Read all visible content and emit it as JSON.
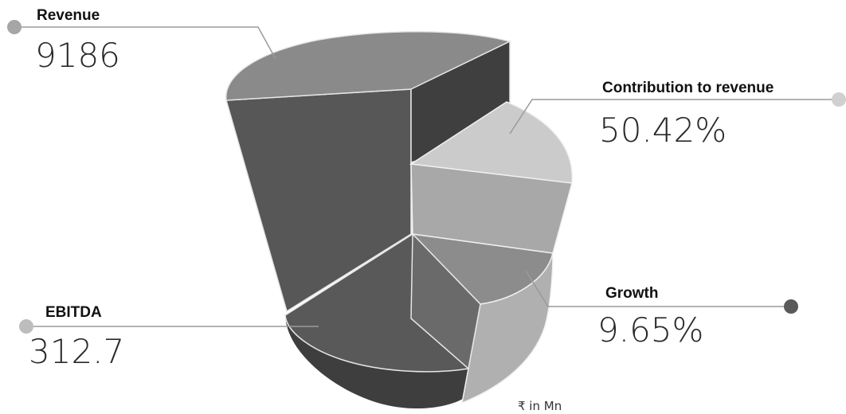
{
  "chart_data": {
    "type": "pie",
    "style": "3d-exploded",
    "callouts": [
      {
        "label": "Revenue",
        "value": "9186"
      },
      {
        "label": "Contribution to revenue",
        "value": "50.42%"
      },
      {
        "label": "Growth",
        "value": "9.65%"
      },
      {
        "label": "EBITDA",
        "value": "312.7"
      }
    ],
    "unit_note": "₹ in Mn",
    "palette": [
      "#4a4a4a",
      "#5b5b5b",
      "#6a6a6a",
      "#8a8a8a",
      "#aaaaaa",
      "#cccccc",
      "#3f3f3f"
    ]
  }
}
